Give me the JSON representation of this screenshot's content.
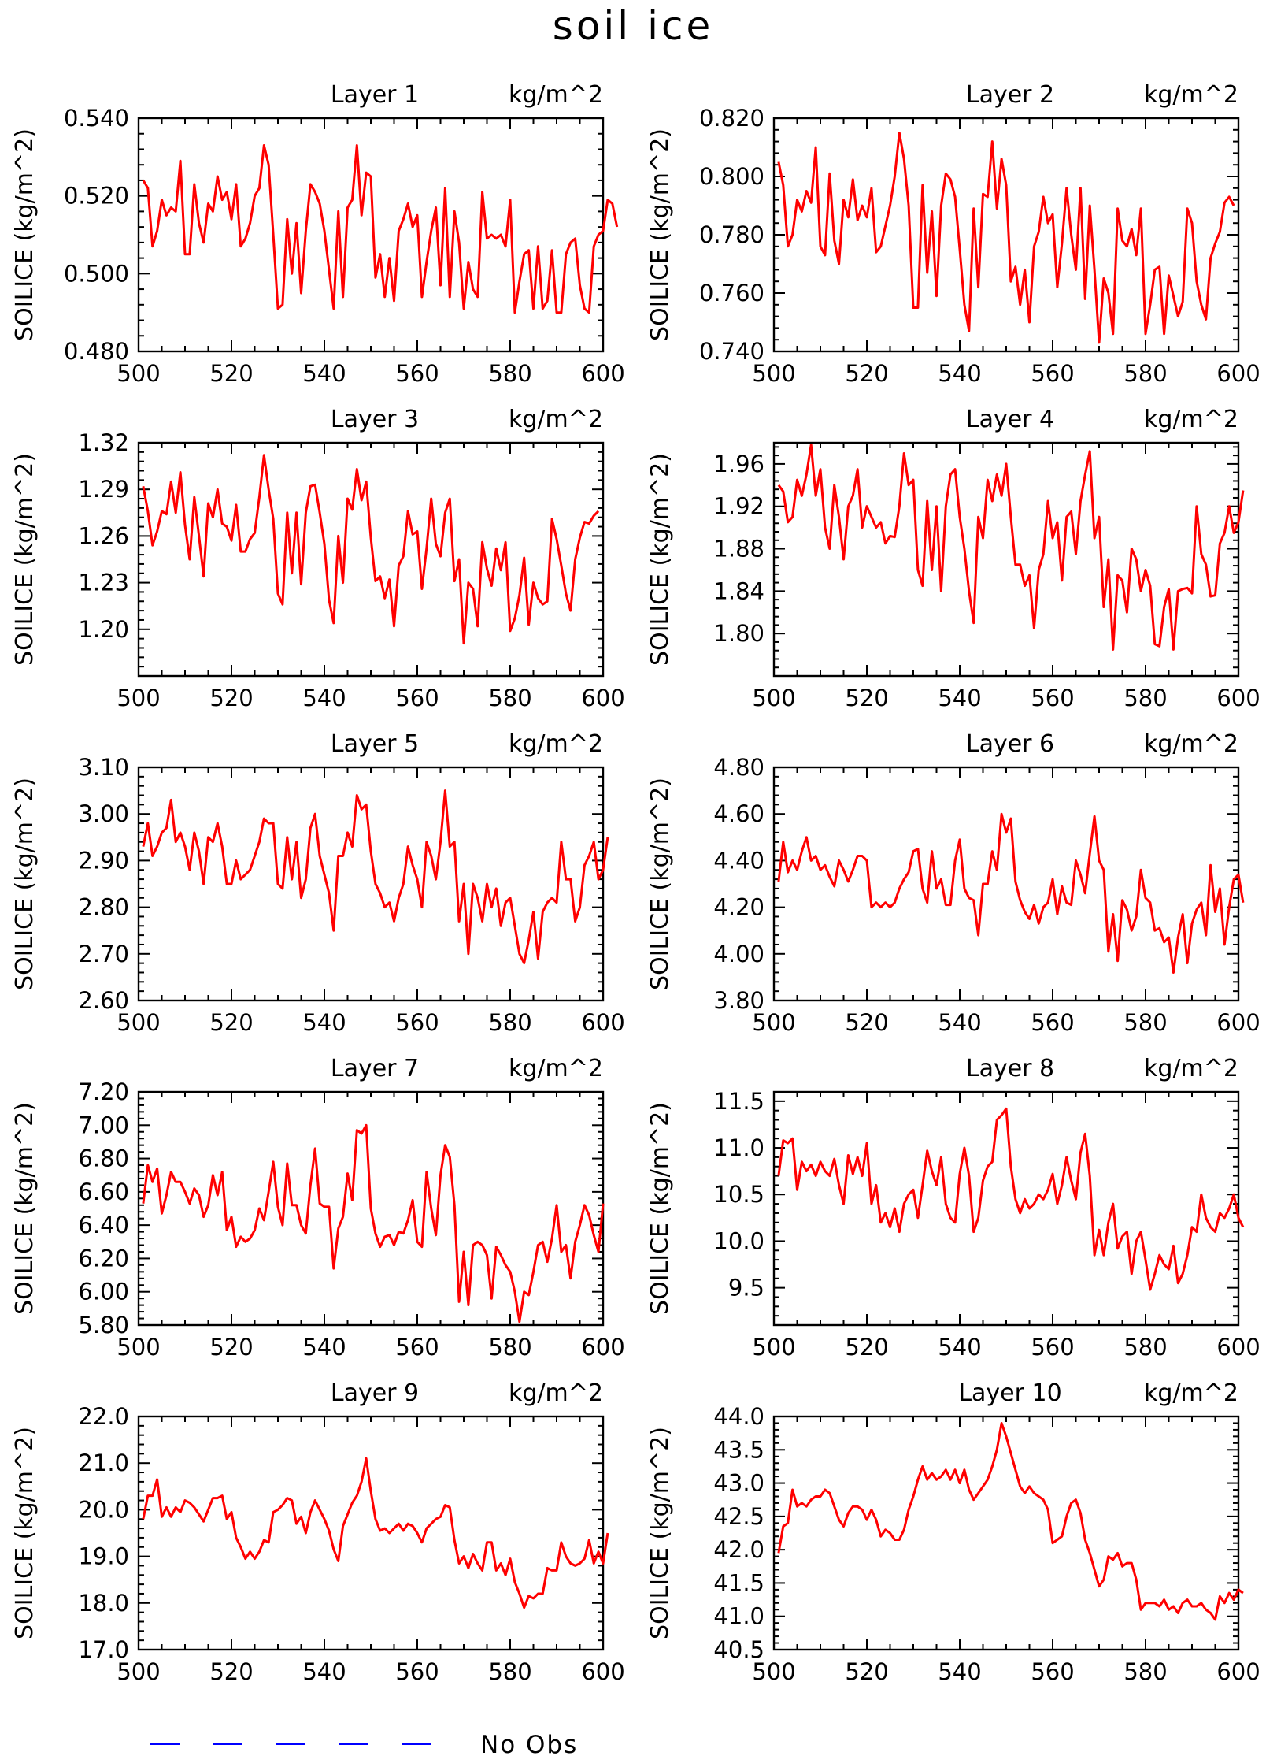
{
  "title": "soil ice",
  "legend": {
    "label": "No Obs",
    "color": "#0000ff"
  },
  "series_color": "#ff0000",
  "chart_data": [
    {
      "type": "line",
      "title": "Layer 1",
      "unit": "kg/m^2",
      "ylabel": "SOILICE  (kg/m^2)",
      "xlim": [
        500,
        600
      ],
      "ylim": [
        0.48,
        0.54
      ],
      "xticks": [
        "500",
        "520",
        "540",
        "560",
        "580",
        "600"
      ],
      "yticks": [
        "0.480",
        "0.500",
        "0.520",
        "0.540"
      ],
      "x_start": 501,
      "values": [
        0.524,
        0.522,
        0.507,
        0.511,
        0.519,
        0.515,
        0.517,
        0.516,
        0.529,
        0.505,
        0.505,
        0.523,
        0.513,
        0.508,
        0.518,
        0.516,
        0.525,
        0.519,
        0.521,
        0.514,
        0.523,
        0.507,
        0.509,
        0.513,
        0.52,
        0.522,
        0.533,
        0.528,
        0.51,
        0.491,
        0.492,
        0.514,
        0.5,
        0.513,
        0.495,
        0.511,
        0.523,
        0.521,
        0.518,
        0.511,
        0.501,
        0.491,
        0.516,
        0.494,
        0.517,
        0.519,
        0.533,
        0.515,
        0.526,
        0.525,
        0.499,
        0.505,
        0.494,
        0.504,
        0.493,
        0.511,
        0.514,
        0.518,
        0.512,
        0.515,
        0.494,
        0.503,
        0.511,
        0.517,
        0.497,
        0.522,
        0.494,
        0.516,
        0.508,
        0.491,
        0.503,
        0.496,
        0.494,
        0.521,
        0.509,
        0.51,
        0.509,
        0.51,
        0.507,
        0.519,
        0.49,
        0.498,
        0.505,
        0.506,
        0.491,
        0.507,
        0.491,
        0.493,
        0.506,
        0.49,
        0.49,
        0.505,
        0.508,
        0.509,
        0.497,
        0.491,
        0.49,
        0.507,
        0.51,
        0.511,
        0.519,
        0.518,
        0.512
      ]
    },
    {
      "type": "line",
      "title": "Layer 2",
      "unit": "kg/m^2",
      "ylabel": "SOILICE  (kg/m^2)",
      "xlim": [
        500,
        600
      ],
      "ylim": [
        0.74,
        0.82
      ],
      "xticks": [
        "500",
        "520",
        "540",
        "560",
        "580",
        "600"
      ],
      "yticks": [
        "0.740",
        "0.760",
        "0.780",
        "0.800",
        "0.820"
      ],
      "x_start": 501,
      "values": [
        0.805,
        0.797,
        0.776,
        0.78,
        0.792,
        0.788,
        0.795,
        0.791,
        0.81,
        0.776,
        0.773,
        0.801,
        0.778,
        0.77,
        0.792,
        0.786,
        0.799,
        0.785,
        0.79,
        0.786,
        0.796,
        0.774,
        0.776,
        0.783,
        0.79,
        0.8,
        0.815,
        0.806,
        0.79,
        0.755,
        0.755,
        0.797,
        0.767,
        0.788,
        0.759,
        0.79,
        0.801,
        0.799,
        0.793,
        0.775,
        0.756,
        0.747,
        0.789,
        0.762,
        0.794,
        0.793,
        0.812,
        0.789,
        0.806,
        0.797,
        0.764,
        0.769,
        0.756,
        0.768,
        0.75,
        0.776,
        0.781,
        0.793,
        0.784,
        0.787,
        0.762,
        0.777,
        0.796,
        0.78,
        0.768,
        0.796,
        0.758,
        0.79,
        0.768,
        0.743,
        0.765,
        0.76,
        0.746,
        0.789,
        0.778,
        0.776,
        0.782,
        0.773,
        0.789,
        0.746,
        0.756,
        0.768,
        0.769,
        0.746,
        0.766,
        0.759,
        0.752,
        0.757,
        0.789,
        0.784,
        0.764,
        0.756,
        0.751,
        0.772,
        0.777,
        0.781,
        0.791,
        0.793,
        0.79
      ]
    },
    {
      "type": "line",
      "title": "Layer 3",
      "unit": "kg/m^2",
      "ylabel": "SOILICE  (kg/m^2)",
      "xlim": [
        500,
        600
      ],
      "ylim": [
        1.17,
        1.32
      ],
      "xticks": [
        "500",
        "520",
        "540",
        "560",
        "580",
        "600"
      ],
      "yticks": [
        "1.20",
        "1.23",
        "1.26",
        "1.29",
        "1.32"
      ],
      "x_start": 501,
      "values": [
        1.292,
        1.276,
        1.254,
        1.263,
        1.276,
        1.274,
        1.295,
        1.275,
        1.301,
        1.267,
        1.245,
        1.285,
        1.26,
        1.234,
        1.281,
        1.272,
        1.29,
        1.268,
        1.266,
        1.257,
        1.28,
        1.25,
        1.25,
        1.258,
        1.262,
        1.285,
        1.312,
        1.29,
        1.271,
        1.223,
        1.216,
        1.275,
        1.236,
        1.275,
        1.229,
        1.275,
        1.292,
        1.293,
        1.275,
        1.255,
        1.219,
        1.204,
        1.26,
        1.23,
        1.284,
        1.277,
        1.303,
        1.283,
        1.295,
        1.259,
        1.231,
        1.234,
        1.22,
        1.232,
        1.202,
        1.241,
        1.247,
        1.276,
        1.261,
        1.263,
        1.226,
        1.252,
        1.284,
        1.255,
        1.247,
        1.275,
        1.284,
        1.231,
        1.245,
        1.191,
        1.23,
        1.226,
        1.202,
        1.256,
        1.239,
        1.228,
        1.252,
        1.238,
        1.256,
        1.199,
        1.207,
        1.222,
        1.246,
        1.203,
        1.23,
        1.22,
        1.216,
        1.218,
        1.271,
        1.258,
        1.241,
        1.223,
        1.212,
        1.245,
        1.259,
        1.269,
        1.268,
        1.273,
        1.276
      ]
    },
    {
      "type": "line",
      "title": "Layer 4",
      "unit": "kg/m^2",
      "ylabel": "SOILICE  (kg/m^2)",
      "xlim": [
        500,
        600
      ],
      "ylim": [
        1.76,
        1.98
      ],
      "xticks": [
        "500",
        "520",
        "540",
        "560",
        "580",
        "600"
      ],
      "yticks": [
        "1.80",
        "1.84",
        "1.88",
        "1.92",
        "1.96"
      ],
      "x_start": 501,
      "values": [
        1.94,
        1.934,
        1.905,
        1.91,
        1.945,
        1.93,
        1.95,
        1.978,
        1.93,
        1.955,
        1.9,
        1.88,
        1.94,
        1.91,
        1.87,
        1.92,
        1.93,
        1.955,
        1.9,
        1.92,
        1.91,
        1.9,
        1.905,
        1.885,
        1.892,
        1.891,
        1.92,
        1.97,
        1.94,
        1.945,
        1.86,
        1.845,
        1.925,
        1.86,
        1.92,
        1.84,
        1.92,
        1.95,
        1.955,
        1.91,
        1.88,
        1.84,
        1.81,
        1.91,
        1.89,
        1.945,
        1.925,
        1.95,
        1.93,
        1.96,
        1.91,
        1.865,
        1.865,
        1.845,
        1.855,
        1.805,
        1.86,
        1.875,
        1.925,
        1.89,
        1.905,
        1.85,
        1.91,
        1.915,
        1.875,
        1.925,
        1.95,
        1.972,
        1.89,
        1.91,
        1.825,
        1.87,
        1.785,
        1.855,
        1.85,
        1.82,
        1.88,
        1.87,
        1.84,
        1.86,
        1.845,
        1.79,
        1.788,
        1.825,
        1.842,
        1.785,
        1.84,
        1.842,
        1.843,
        1.838,
        1.92,
        1.875,
        1.865,
        1.835,
        1.836,
        1.885,
        1.895,
        1.92,
        1.895,
        1.905,
        1.935
      ]
    },
    {
      "type": "line",
      "title": "Layer 5",
      "unit": "kg/m^2",
      "ylabel": "SOILICE  (kg/m^2)",
      "xlim": [
        500,
        600
      ],
      "ylim": [
        2.6,
        3.1
      ],
      "xticks": [
        "500",
        "520",
        "540",
        "560",
        "580",
        "600"
      ],
      "yticks": [
        "2.60",
        "2.70",
        "2.80",
        "2.90",
        "3.00",
        "3.10"
      ],
      "x_start": 501,
      "values": [
        2.93,
        2.98,
        2.91,
        2.93,
        2.96,
        2.97,
        3.03,
        2.94,
        2.96,
        2.93,
        2.88,
        2.96,
        2.92,
        2.85,
        2.95,
        2.94,
        2.98,
        2.93,
        2.85,
        2.85,
        2.9,
        2.86,
        2.87,
        2.88,
        2.91,
        2.94,
        2.99,
        2.98,
        2.98,
        2.85,
        2.84,
        2.95,
        2.86,
        2.94,
        2.82,
        2.86,
        2.97,
        3.0,
        2.91,
        2.87,
        2.83,
        2.75,
        2.91,
        2.91,
        2.96,
        2.93,
        3.04,
        3.01,
        3.02,
        2.92,
        2.85,
        2.83,
        2.8,
        2.81,
        2.77,
        2.82,
        2.85,
        2.93,
        2.89,
        2.86,
        2.8,
        2.94,
        2.91,
        2.86,
        2.94,
        3.05,
        2.93,
        2.94,
        2.77,
        2.85,
        2.7,
        2.85,
        2.82,
        2.77,
        2.85,
        2.8,
        2.84,
        2.76,
        2.81,
        2.82,
        2.76,
        2.7,
        2.68,
        2.73,
        2.79,
        2.69,
        2.79,
        2.81,
        2.82,
        2.81,
        2.94,
        2.86,
        2.86,
        2.77,
        2.8,
        2.89,
        2.91,
        2.94,
        2.86,
        2.88,
        2.95
      ]
    },
    {
      "type": "line",
      "title": "Layer 6",
      "unit": "kg/m^2",
      "ylabel": "SOILICE  (kg/m^2)",
      "xlim": [
        500,
        600
      ],
      "ylim": [
        3.8,
        4.8
      ],
      "xticks": [
        "500",
        "520",
        "540",
        "560",
        "580",
        "600"
      ],
      "yticks": [
        "3.80",
        "4.00",
        "4.20",
        "4.40",
        "4.60",
        "4.80"
      ],
      "x_start": 501,
      "values": [
        4.31,
        4.48,
        4.35,
        4.4,
        4.36,
        4.44,
        4.5,
        4.4,
        4.42,
        4.36,
        4.38,
        4.33,
        4.29,
        4.4,
        4.36,
        4.31,
        4.36,
        4.42,
        4.42,
        4.4,
        4.2,
        4.22,
        4.2,
        4.22,
        4.2,
        4.22,
        4.28,
        4.32,
        4.35,
        4.44,
        4.45,
        4.28,
        4.22,
        4.44,
        4.28,
        4.32,
        4.21,
        4.21,
        4.4,
        4.49,
        4.28,
        4.24,
        4.23,
        4.08,
        4.3,
        4.3,
        4.44,
        4.36,
        4.6,
        4.52,
        4.58,
        4.31,
        4.23,
        4.18,
        4.15,
        4.21,
        4.13,
        4.2,
        4.22,
        4.32,
        4.17,
        4.29,
        4.22,
        4.21,
        4.4,
        4.34,
        4.26,
        4.43,
        4.59,
        4.4,
        4.36,
        4.01,
        4.17,
        3.97,
        4.23,
        4.19,
        4.1,
        4.16,
        4.36,
        4.24,
        4.22,
        4.1,
        4.11,
        4.05,
        4.07,
        3.92,
        4.07,
        4.17,
        3.96,
        4.13,
        4.19,
        4.22,
        4.08,
        4.38,
        4.18,
        4.28,
        4.04,
        4.2,
        4.32,
        4.34,
        4.22
      ]
    },
    {
      "type": "line",
      "title": "Layer 7",
      "unit": "kg/m^2",
      "ylabel": "SOILICE  (kg/m^2)",
      "xlim": [
        500,
        600
      ],
      "ylim": [
        5.8,
        7.2
      ],
      "xticks": [
        "500",
        "520",
        "540",
        "560",
        "580",
        "600"
      ],
      "yticks": [
        "5.80",
        "6.00",
        "6.20",
        "6.40",
        "6.60",
        "6.80",
        "7.00",
        "7.20"
      ],
      "x_start": 501,
      "values": [
        6.53,
        6.76,
        6.66,
        6.74,
        6.47,
        6.58,
        6.72,
        6.66,
        6.66,
        6.6,
        6.53,
        6.62,
        6.58,
        6.45,
        6.52,
        6.7,
        6.58,
        6.72,
        6.37,
        6.45,
        6.27,
        6.33,
        6.3,
        6.32,
        6.37,
        6.5,
        6.43,
        6.6,
        6.78,
        6.51,
        6.4,
        6.77,
        6.52,
        6.52,
        6.4,
        6.35,
        6.64,
        6.86,
        6.53,
        6.51,
        6.51,
        6.14,
        6.38,
        6.45,
        6.71,
        6.55,
        6.97,
        6.95,
        7.0,
        6.5,
        6.35,
        6.27,
        6.33,
        6.34,
        6.28,
        6.36,
        6.35,
        6.43,
        6.55,
        6.3,
        6.27,
        6.72,
        6.5,
        6.34,
        6.7,
        6.88,
        6.81,
        6.52,
        5.94,
        6.24,
        5.92,
        6.28,
        6.3,
        6.28,
        6.22,
        5.96,
        6.27,
        6.22,
        6.16,
        6.12,
        6.0,
        5.82,
        6.0,
        5.98,
        6.12,
        6.28,
        6.3,
        6.18,
        6.32,
        6.52,
        6.24,
        6.28,
        6.08,
        6.3,
        6.4,
        6.52,
        6.46,
        6.34,
        6.24,
        6.53
      ]
    },
    {
      "type": "line",
      "title": "Layer 8",
      "unit": "kg/m^2",
      "ylabel": "SOILICE  (kg/m^2)",
      "xlim": [
        500,
        600
      ],
      "ylim": [
        9.1,
        11.6
      ],
      "xticks": [
        "500",
        "520",
        "540",
        "560",
        "580",
        "600"
      ],
      "yticks": [
        "9.5",
        "10.0",
        "10.5",
        "11.0",
        "11.5"
      ],
      "x_start": 501,
      "values": [
        10.7,
        11.08,
        11.05,
        11.1,
        10.55,
        10.85,
        10.75,
        10.82,
        10.7,
        10.85,
        10.75,
        10.7,
        10.88,
        10.6,
        10.4,
        10.92,
        10.72,
        10.9,
        10.7,
        11.05,
        10.4,
        10.6,
        10.2,
        10.3,
        10.15,
        10.35,
        10.1,
        10.4,
        10.5,
        10.55,
        10.25,
        10.6,
        10.97,
        10.75,
        10.6,
        10.9,
        10.4,
        10.25,
        10.2,
        10.72,
        11.0,
        10.7,
        10.1,
        10.25,
        10.65,
        10.8,
        10.85,
        11.3,
        11.35,
        11.42,
        10.8,
        10.45,
        10.3,
        10.45,
        10.35,
        10.4,
        10.5,
        10.45,
        10.55,
        10.72,
        10.4,
        10.6,
        10.9,
        10.65,
        10.45,
        10.95,
        11.15,
        10.7,
        9.85,
        10.12,
        9.85,
        10.2,
        10.4,
        9.92,
        10.05,
        10.1,
        9.65,
        10.0,
        10.1,
        9.8,
        9.48,
        9.65,
        9.85,
        9.75,
        9.7,
        9.95,
        9.55,
        9.65,
        9.85,
        10.15,
        10.1,
        10.5,
        10.25,
        10.15,
        10.1,
        10.3,
        10.25,
        10.35,
        10.5,
        10.25,
        10.15
      ]
    },
    {
      "type": "line",
      "title": "Layer 9",
      "unit": "kg/m^2",
      "ylabel": "SOILICE  (kg/m^2)",
      "xlim": [
        500,
        600
      ],
      "ylim": [
        17.0,
        22.0
      ],
      "xticks": [
        "500",
        "520",
        "540",
        "560",
        "580",
        "600"
      ],
      "yticks": [
        "17.0",
        "18.0",
        "19.0",
        "20.0",
        "21.0",
        "22.0"
      ],
      "x_start": 501,
      "values": [
        19.8,
        20.3,
        20.3,
        20.65,
        19.85,
        20.05,
        19.85,
        20.05,
        19.95,
        20.2,
        20.15,
        20.05,
        19.9,
        19.75,
        20.0,
        20.25,
        20.25,
        20.3,
        19.8,
        19.95,
        19.4,
        19.2,
        18.95,
        19.1,
        18.95,
        19.1,
        19.35,
        19.3,
        19.95,
        20.0,
        20.1,
        20.25,
        20.2,
        19.7,
        19.85,
        19.5,
        19.95,
        20.2,
        20.0,
        19.8,
        19.55,
        19.15,
        18.9,
        19.65,
        19.9,
        20.15,
        20.3,
        20.6,
        21.1,
        20.4,
        19.8,
        19.55,
        19.6,
        19.5,
        19.6,
        19.7,
        19.55,
        19.7,
        19.65,
        19.5,
        19.3,
        19.6,
        19.7,
        19.8,
        19.85,
        20.1,
        20.05,
        19.35,
        18.85,
        19.0,
        18.75,
        19.05,
        18.85,
        18.7,
        19.3,
        19.3,
        18.7,
        18.85,
        18.6,
        18.95,
        18.45,
        18.2,
        17.9,
        18.15,
        18.1,
        18.2,
        18.2,
        18.75,
        18.7,
        18.7,
        19.3,
        19.0,
        18.85,
        18.8,
        18.85,
        18.95,
        19.35,
        18.85,
        19.1,
        18.85,
        19.5
      ]
    },
    {
      "type": "line",
      "title": "Layer 10",
      "unit": "kg/m^2",
      "ylabel": "SOILICE  (kg/m^2)",
      "xlim": [
        500,
        600
      ],
      "ylim": [
        40.5,
        44.0
      ],
      "xticks": [
        "500",
        "520",
        "540",
        "560",
        "580",
        "600"
      ],
      "yticks": [
        "40.5",
        "41.0",
        "41.5",
        "42.0",
        "42.5",
        "43.0",
        "43.5",
        "44.0"
      ],
      "x_start": 501,
      "values": [
        41.95,
        42.35,
        42.4,
        42.9,
        42.65,
        42.7,
        42.65,
        42.75,
        42.8,
        42.8,
        42.9,
        42.85,
        42.65,
        42.45,
        42.35,
        42.55,
        42.65,
        42.65,
        42.6,
        42.45,
        42.6,
        42.45,
        42.2,
        42.3,
        42.25,
        42.15,
        42.15,
        42.3,
        42.6,
        42.8,
        43.05,
        43.25,
        43.05,
        43.15,
        43.05,
        43.1,
        43.2,
        43.05,
        43.2,
        43.0,
        43.2,
        42.9,
        42.75,
        42.85,
        42.95,
        43.05,
        43.25,
        43.5,
        43.9,
        43.7,
        43.45,
        43.2,
        42.95,
        42.85,
        42.95,
        42.85,
        42.8,
        42.75,
        42.6,
        42.1,
        42.15,
        42.2,
        42.5,
        42.7,
        42.75,
        42.55,
        42.15,
        41.95,
        41.7,
        41.45,
        41.55,
        41.9,
        41.85,
        41.95,
        41.75,
        41.8,
        41.8,
        41.55,
        41.1,
        41.2,
        41.2,
        41.2,
        41.15,
        41.25,
        41.1,
        41.15,
        41.05,
        41.2,
        41.25,
        41.15,
        41.15,
        41.2,
        41.1,
        41.05,
        40.95,
        41.3,
        41.2,
        41.35,
        41.25,
        41.4,
        41.35
      ]
    }
  ]
}
